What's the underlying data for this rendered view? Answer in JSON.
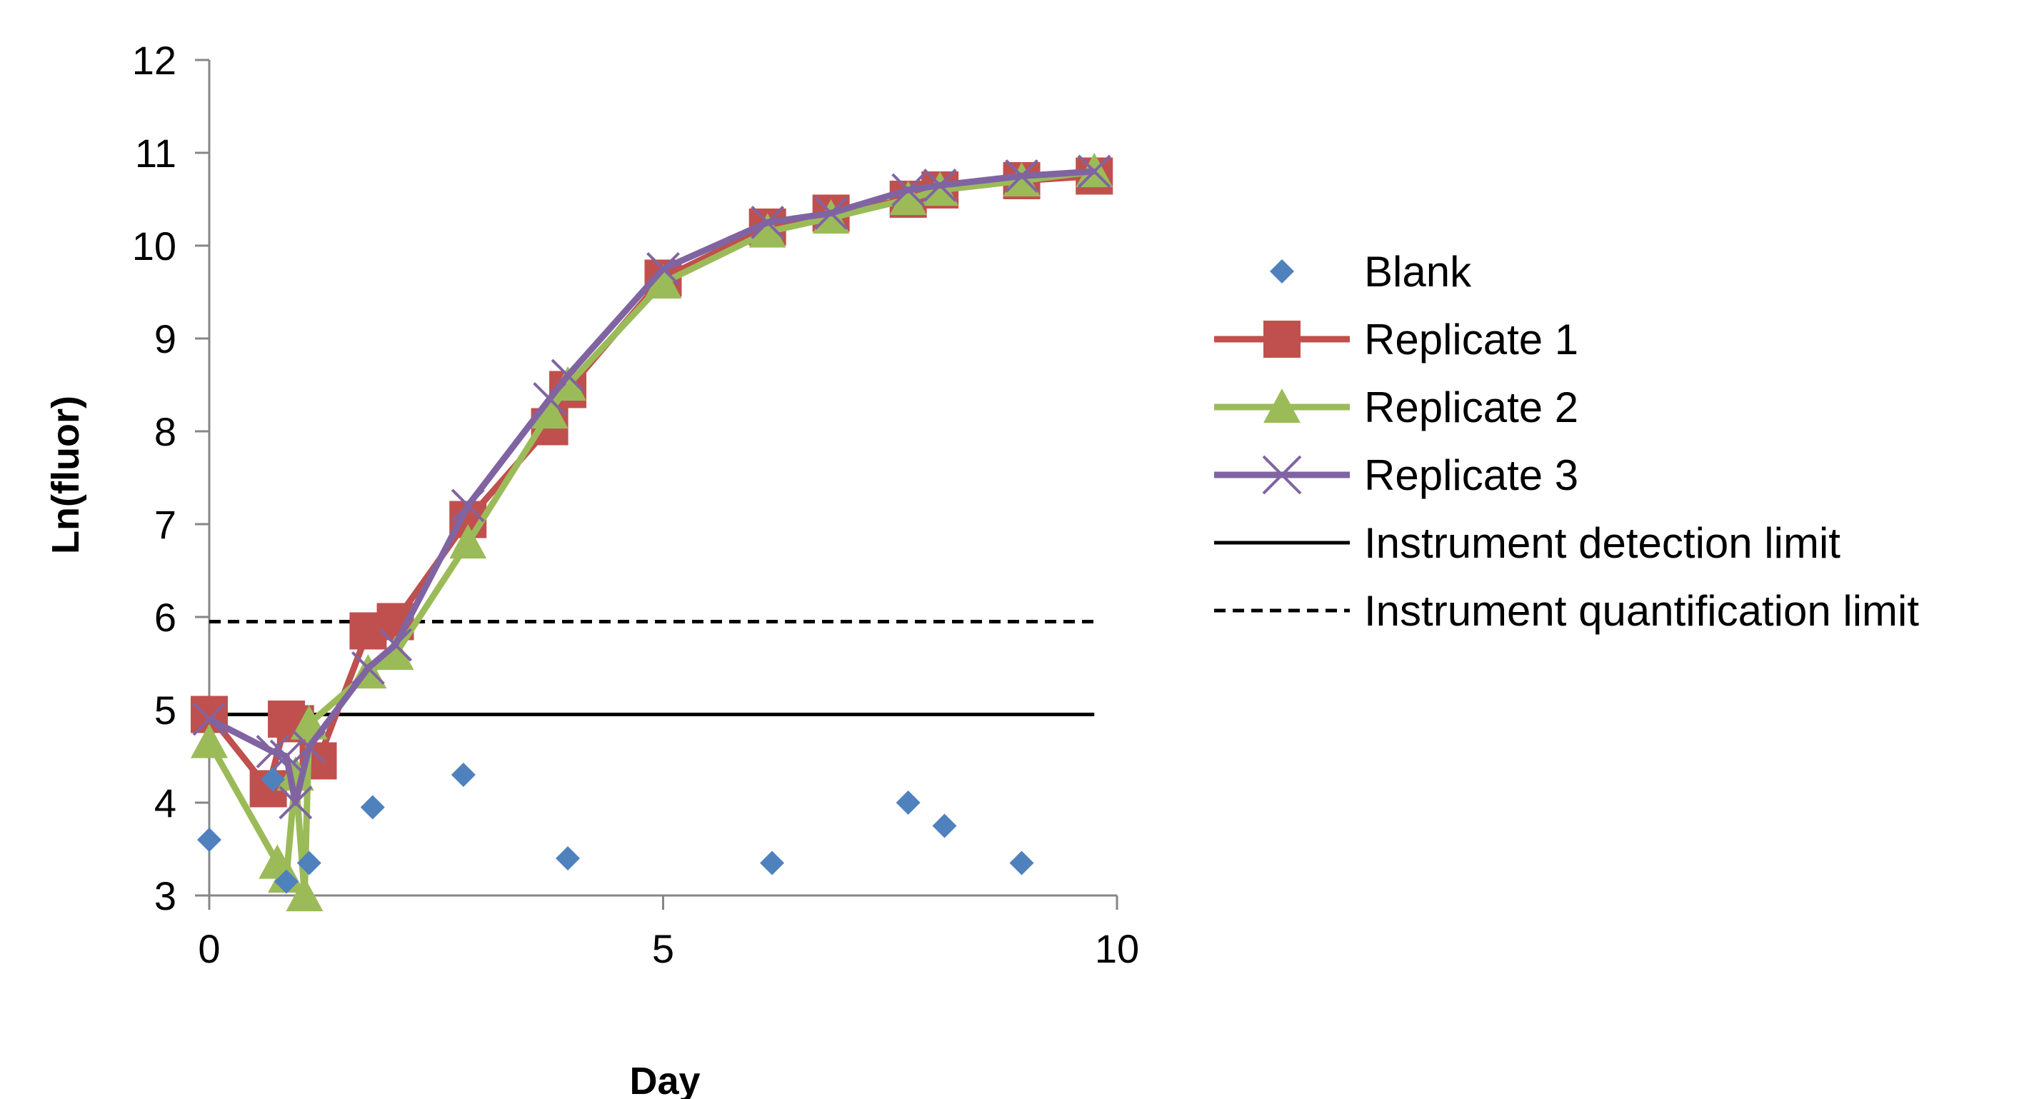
{
  "chart_data": {
    "type": "line",
    "xlabel": "Day",
    "ylabel": "Ln(fluor)",
    "xlim": [
      0,
      10
    ],
    "ylim": [
      3,
      12
    ],
    "x_ticks": [
      0,
      5,
      10
    ],
    "y_ticks": [
      3,
      4,
      5,
      6,
      7,
      8,
      9,
      10,
      11,
      12
    ],
    "grid": false,
    "legend_position": "right",
    "series": [
      {
        "name": "Blank",
        "style": "markers",
        "marker": "diamond",
        "color": "#4f81bd",
        "x": [
          0,
          0.7,
          0.85,
          1.1,
          1.8,
          2.8,
          3.95,
          6.2,
          7.7,
          8.1,
          8.95
        ],
        "y": [
          3.6,
          4.25,
          3.15,
          3.35,
          3.95,
          4.3,
          3.4,
          3.35,
          4.0,
          3.75,
          3.35
        ]
      },
      {
        "name": "Replicate 1",
        "style": "line-markers",
        "marker": "square",
        "color": "#c0504d",
        "x": [
          0,
          0.65,
          0.85,
          0.95,
          1.2,
          1.75,
          2.05,
          2.85,
          3.75,
          3.95,
          5.0,
          6.15,
          6.85,
          7.7,
          8.05,
          8.95,
          9.75
        ],
        "y": [
          4.95,
          4.15,
          4.9,
          4.85,
          4.45,
          5.85,
          5.95,
          7.05,
          8.05,
          8.45,
          9.65,
          10.2,
          10.35,
          10.5,
          10.6,
          10.7,
          10.75
        ]
      },
      {
        "name": "Replicate 2",
        "style": "line-markers",
        "marker": "triangle",
        "color": "#9bbb59",
        "x": [
          0,
          0.75,
          0.85,
          0.95,
          1.05,
          1.1,
          1.75,
          2.05,
          2.85,
          3.75,
          3.95,
          5.0,
          6.15,
          6.85,
          7.7,
          8.05,
          8.95,
          9.75
        ],
        "y": [
          4.65,
          3.35,
          3.2,
          4.3,
          3.0,
          4.85,
          5.4,
          5.6,
          6.8,
          8.2,
          8.5,
          9.6,
          10.15,
          10.3,
          10.5,
          10.6,
          10.7,
          10.8
        ]
      },
      {
        "name": "Replicate 3",
        "style": "line-markers",
        "marker": "x",
        "color": "#8064a2",
        "x": [
          0,
          0.7,
          0.85,
          0.95,
          1.1,
          1.75,
          2.05,
          2.85,
          3.75,
          3.95,
          5.0,
          6.15,
          6.85,
          7.7,
          8.05,
          8.95,
          9.75
        ],
        "y": [
          4.9,
          4.55,
          4.5,
          4.0,
          4.6,
          5.45,
          5.7,
          7.2,
          8.35,
          8.6,
          9.75,
          10.25,
          10.35,
          10.6,
          10.65,
          10.75,
          10.8
        ]
      },
      {
        "name": "Instrument detection limit",
        "style": "hline",
        "color": "#000000",
        "dash": false,
        "x": [
          0,
          9.75
        ],
        "y": [
          4.95,
          4.95
        ]
      },
      {
        "name": "Instrument quantification limit",
        "style": "hline",
        "color": "#000000",
        "dash": true,
        "x": [
          0,
          9.75
        ],
        "y": [
          5.95,
          5.95
        ]
      }
    ]
  }
}
